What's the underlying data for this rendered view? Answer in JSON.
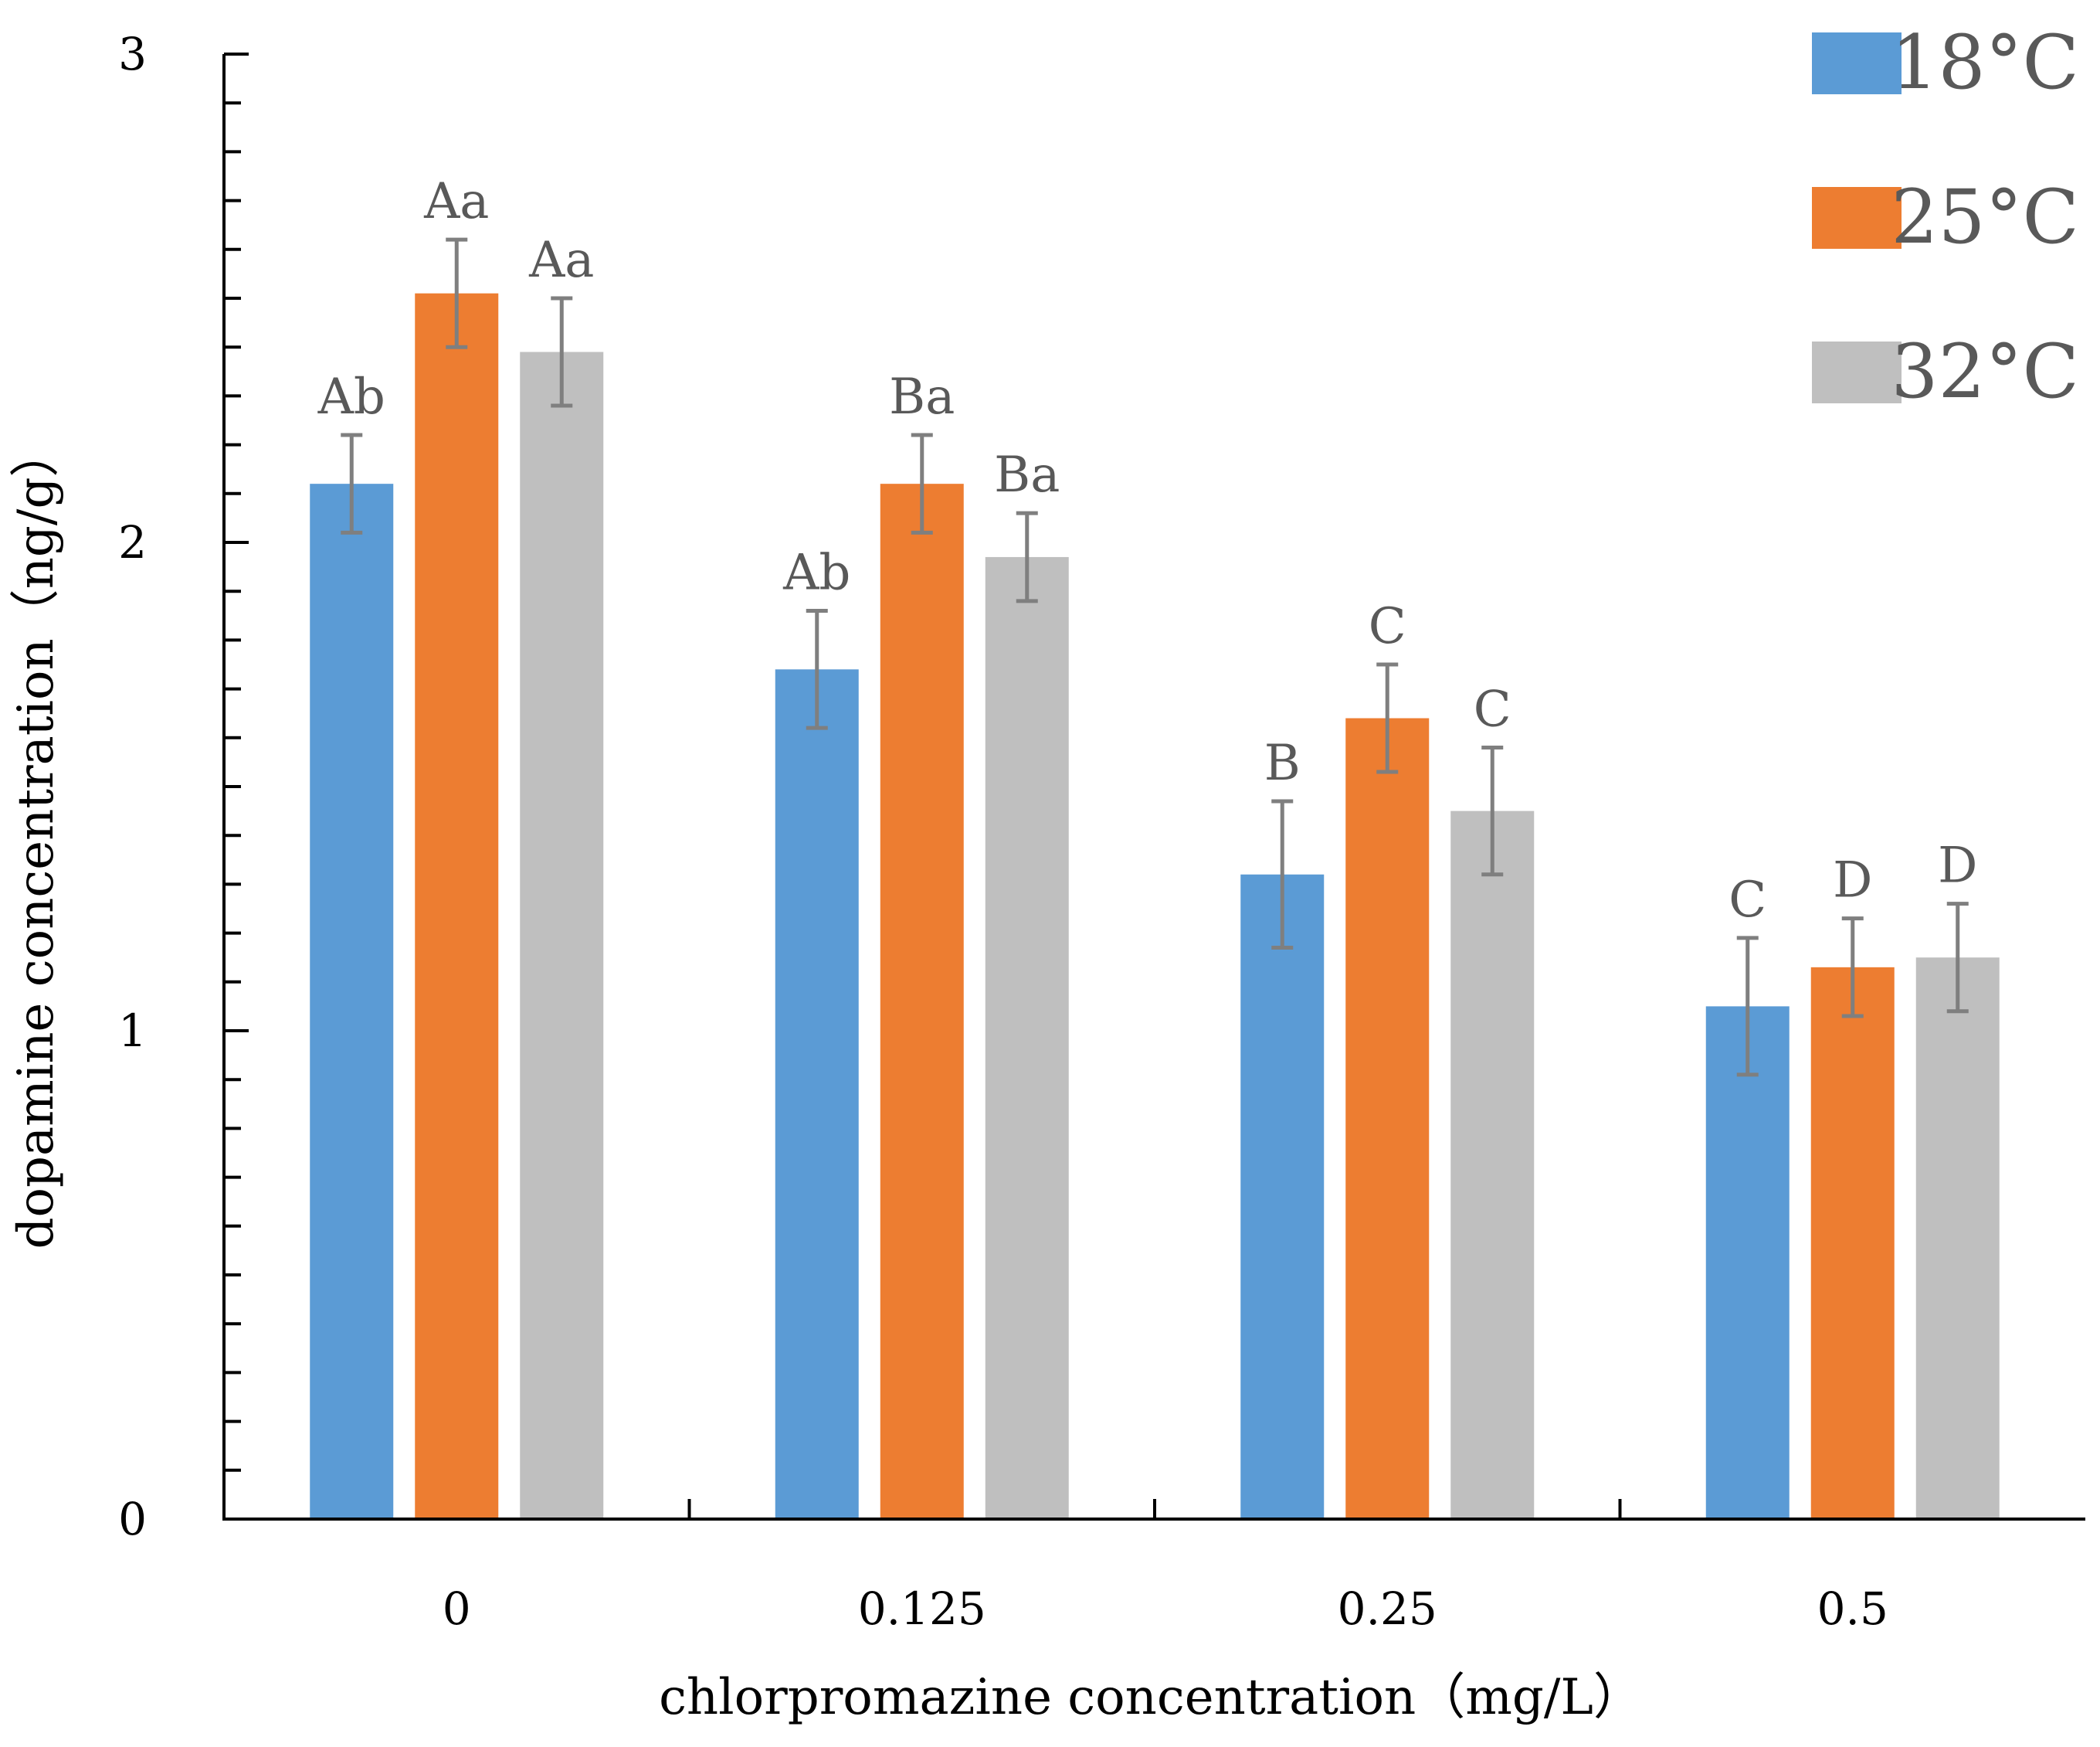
{
  "chart_data": {
    "type": "bar",
    "title": "",
    "xlabel": "chlorpromazine concentration（mg/L）",
    "ylabel": "dopamine concentration（ng/g）",
    "ylim": [
      0,
      3
    ],
    "yticks": [
      0,
      1,
      2,
      3
    ],
    "categories": [
      "0",
      "0.125",
      "0.25",
      "0.5"
    ],
    "series": [
      {
        "name": "18°C",
        "color": "#5b9bd5",
        "values": [
          2.12,
          1.74,
          1.32,
          1.05
        ],
        "errors": [
          0.1,
          0.12,
          0.15,
          0.14
        ],
        "labels": [
          "Ab",
          "Ab",
          "B",
          "C"
        ]
      },
      {
        "name": "25°C",
        "color": "#ed7d31",
        "values": [
          2.51,
          2.12,
          1.64,
          1.13
        ],
        "errors": [
          0.11,
          0.1,
          0.11,
          0.1
        ],
        "labels": [
          "Aa",
          "Ba",
          "C",
          "D"
        ]
      },
      {
        "name": "32°C",
        "color": "#bfbfbf",
        "values": [
          2.39,
          1.97,
          1.45,
          1.15
        ],
        "errors": [
          0.11,
          0.09,
          0.13,
          0.11
        ],
        "labels": [
          "Aa",
          "Ba",
          "C",
          "D"
        ]
      }
    ],
    "legend_position": "top-right",
    "grid": false
  }
}
